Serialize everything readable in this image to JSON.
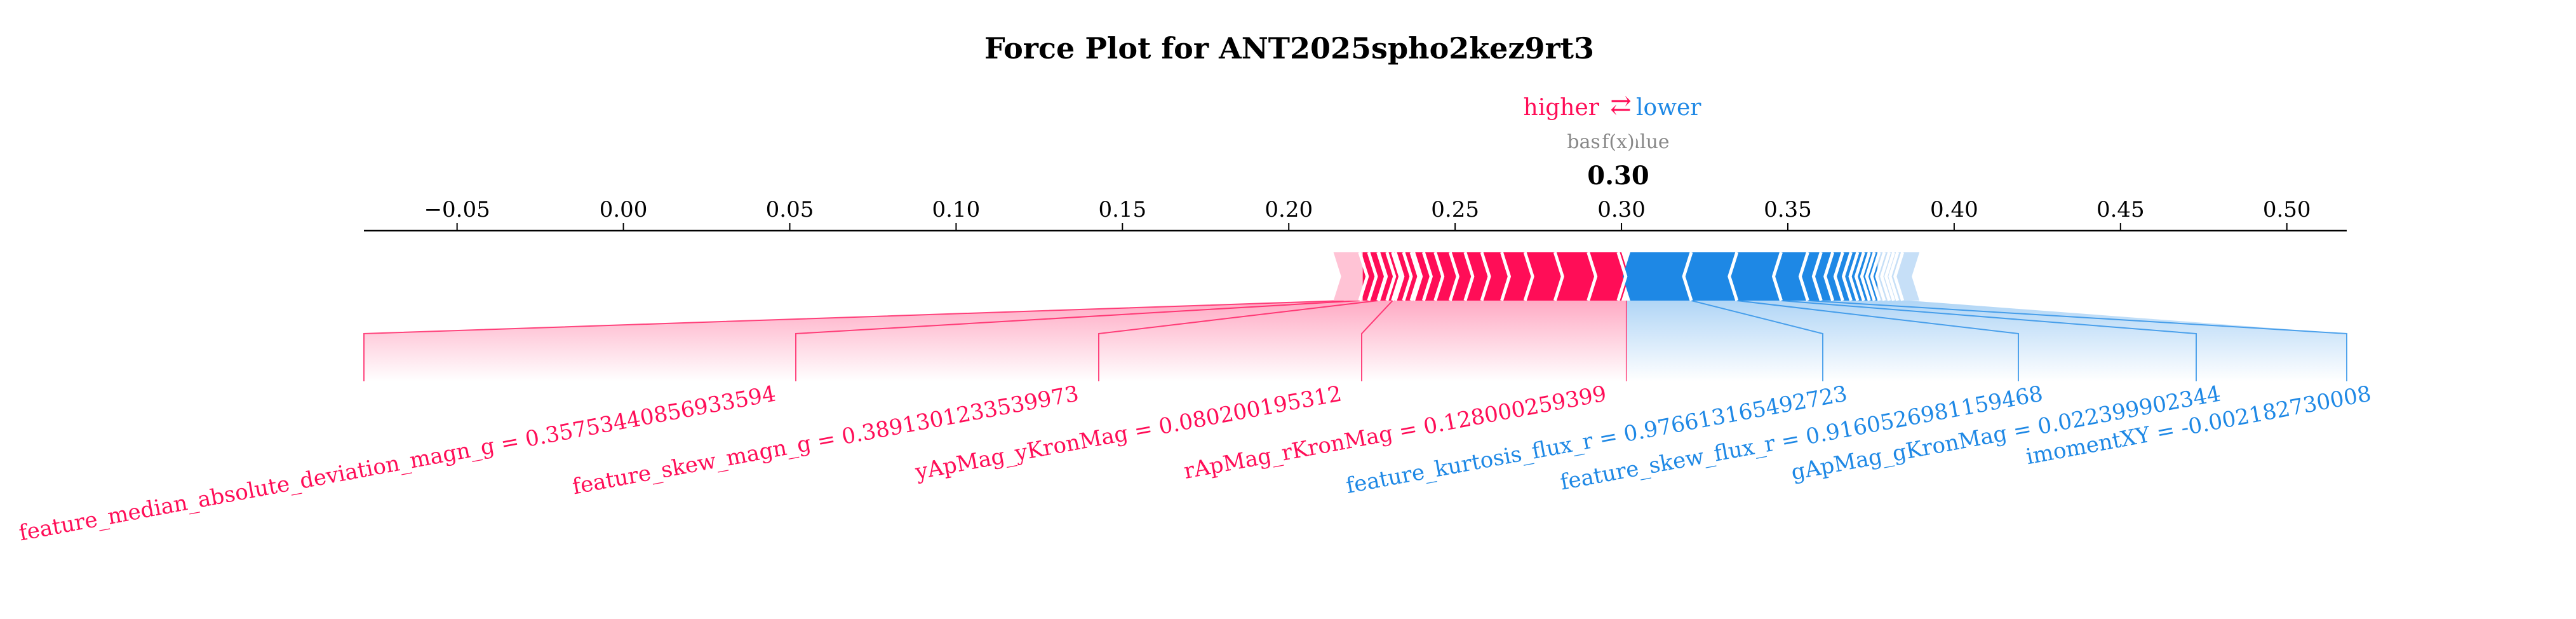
{
  "chart_data": {
    "type": "force",
    "title": "Force Plot for ANT2025spho2kez9rt3",
    "legend": {
      "higher_label": "higher",
      "arrow_glyph": "⇄",
      "lower_label": "lower",
      "higher_color": "#ff0d57",
      "lower_color": "#1e88e5"
    },
    "base_value_label": "base value",
    "fx_label": "f(x)",
    "output_value": 0.3,
    "output_value_label": "0.30",
    "xlim": [
      -0.078,
      0.518
    ],
    "ticks": [
      {
        "value": -0.05,
        "label": "−0.05"
      },
      {
        "value": 0.0,
        "label": "0.00"
      },
      {
        "value": 0.05,
        "label": "0.05"
      },
      {
        "value": 0.1,
        "label": "0.10"
      },
      {
        "value": 0.15,
        "label": "0.15"
      },
      {
        "value": 0.2,
        "label": "0.20"
      },
      {
        "value": 0.25,
        "label": "0.25"
      },
      {
        "value": 0.3,
        "label": "0.30"
      },
      {
        "value": 0.35,
        "label": "0.35"
      },
      {
        "value": 0.4,
        "label": "0.40"
      },
      {
        "value": 0.45,
        "label": "0.45"
      },
      {
        "value": 0.5,
        "label": "0.50"
      }
    ],
    "positive": {
      "bar_range": [
        0.2165,
        0.3015
      ],
      "labeled_features": [
        {
          "label": "feature_median_absolute_deviation_magn_g = 0.35753440856933594",
          "start": 0.2165,
          "end": 0.2213
        },
        {
          "label": "feature_skew_magn_g = 0.3891301233539973",
          "start": 0.2213,
          "end": 0.2268
        },
        {
          "label": "yApMag_yKronMag = 0.080200195312",
          "start": 0.2268,
          "end": 0.2312
        },
        {
          "label": "rApMag_rKronMag = 0.128000259399",
          "start": 0.2312,
          "end": 0.2368
        }
      ],
      "unlabeled_boundaries": [
        0.224,
        0.227,
        0.2295,
        0.232,
        0.2345,
        0.2375,
        0.2405,
        0.244,
        0.2485,
        0.253,
        0.258,
        0.264,
        0.271,
        0.28,
        0.29,
        0.299
      ]
    },
    "negative": {
      "bar_range": [
        0.3015,
        0.3865
      ],
      "labeled_features": [
        {
          "label": "feature_kurtosis_flux_r = 0.976613165492723",
          "start": 0.3015,
          "end": 0.321
        },
        {
          "label": "feature_skew_flux_r = 0.9160526981159468",
          "start": 0.321,
          "end": 0.3347
        },
        {
          "label": "gApMag_gKronMag = 0.022399902344",
          "start": 0.3347,
          "end": 0.348
        },
        {
          "label": "imomentXY = -0.002182730008",
          "start": 0.348,
          "end": 0.356
        }
      ],
      "unlabeled_boundaries": [
        0.36,
        0.3635,
        0.3665,
        0.369,
        0.371,
        0.3728,
        0.3745,
        0.376,
        0.3775,
        0.379,
        0.3805,
        0.3818,
        0.383,
        0.3845
      ]
    }
  }
}
